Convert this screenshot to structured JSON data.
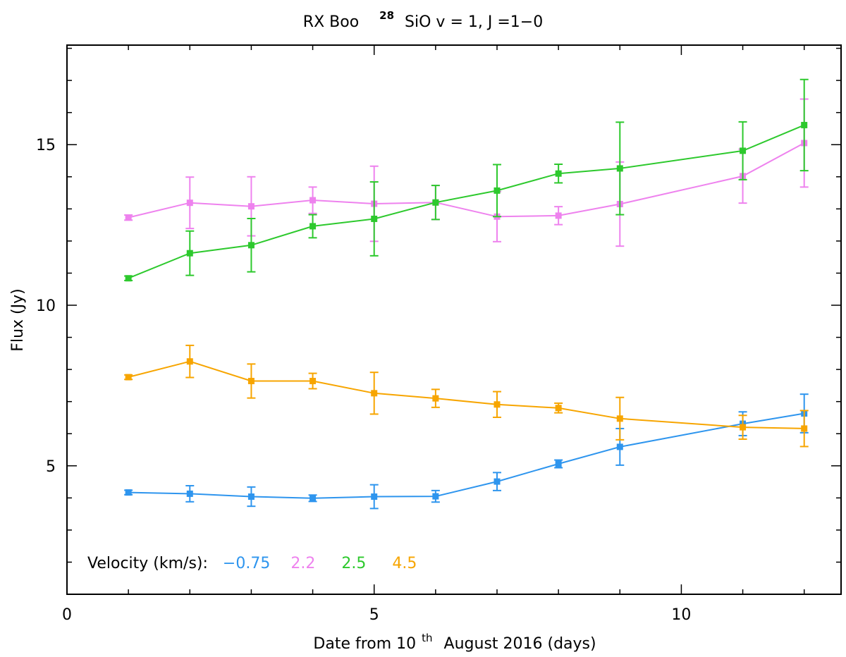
{
  "chart_data": {
    "type": "line",
    "title_parts": {
      "prefix": "RX Boo",
      "isotope_sup": "28",
      "suffix": "SiO v = 1, J =1−0"
    },
    "xlabel_parts": {
      "prefix": "Date from 10",
      "sup": "th",
      "suffix": "August 2016 (days)"
    },
    "ylabel": "Flux (Jy)",
    "xlim": [
      0,
      12.6
    ],
    "ylim": [
      1,
      18.1
    ],
    "x_ticks": [
      0,
      5,
      10
    ],
    "y_ticks": [
      5,
      10,
      15
    ],
    "x_minor_step": 1,
    "y_minor_step": 1,
    "grid": false,
    "legend": {
      "label": "Velocity (km/s):",
      "placement": "bottom-left"
    },
    "series": [
      {
        "name": "−0.75",
        "color": "#2e95ee",
        "x": [
          1,
          2,
          3,
          4,
          5,
          6,
          7,
          8,
          9,
          11,
          12
        ],
        "y": [
          4.17,
          4.13,
          4.04,
          3.99,
          4.04,
          4.05,
          4.51,
          5.06,
          5.59,
          6.31,
          6.63
        ],
        "err": [
          0.07,
          0.25,
          0.3,
          0.1,
          0.37,
          0.18,
          0.28,
          0.12,
          0.57,
          0.37,
          0.6
        ]
      },
      {
        "name": "2.2",
        "color": "#ee82ee",
        "x": [
          1,
          2,
          3,
          4,
          5,
          6,
          7,
          8,
          9,
          11,
          12
        ],
        "y": [
          12.73,
          13.19,
          13.08,
          13.27,
          13.16,
          13.2,
          12.76,
          12.79,
          13.15,
          14.02,
          15.05
        ],
        "err": [
          0.08,
          0.8,
          0.92,
          0.41,
          1.17,
          0.53,
          0.78,
          0.28,
          1.31,
          0.84,
          1.37
        ]
      },
      {
        "name": "2.5",
        "color": "#2dc92d",
        "x": [
          1,
          2,
          3,
          4,
          5,
          6,
          7,
          8,
          9,
          11,
          12
        ],
        "y": [
          10.84,
          11.62,
          11.87,
          12.46,
          12.69,
          13.2,
          13.57,
          14.1,
          14.26,
          14.81,
          15.61
        ],
        "err": [
          0.07,
          0.69,
          0.83,
          0.36,
          1.15,
          0.53,
          0.81,
          0.29,
          1.44,
          0.9,
          1.42
        ]
      },
      {
        "name": "4.5",
        "color": "#f7a500",
        "x": [
          1,
          2,
          3,
          4,
          5,
          6,
          7,
          8,
          9,
          11,
          12
        ],
        "y": [
          7.76,
          8.25,
          7.64,
          7.64,
          7.26,
          7.1,
          6.91,
          6.8,
          6.47,
          6.2,
          6.16
        ],
        "err": [
          0.07,
          0.5,
          0.53,
          0.24,
          0.65,
          0.28,
          0.4,
          0.15,
          0.66,
          0.37,
          0.56
        ]
      }
    ]
  }
}
